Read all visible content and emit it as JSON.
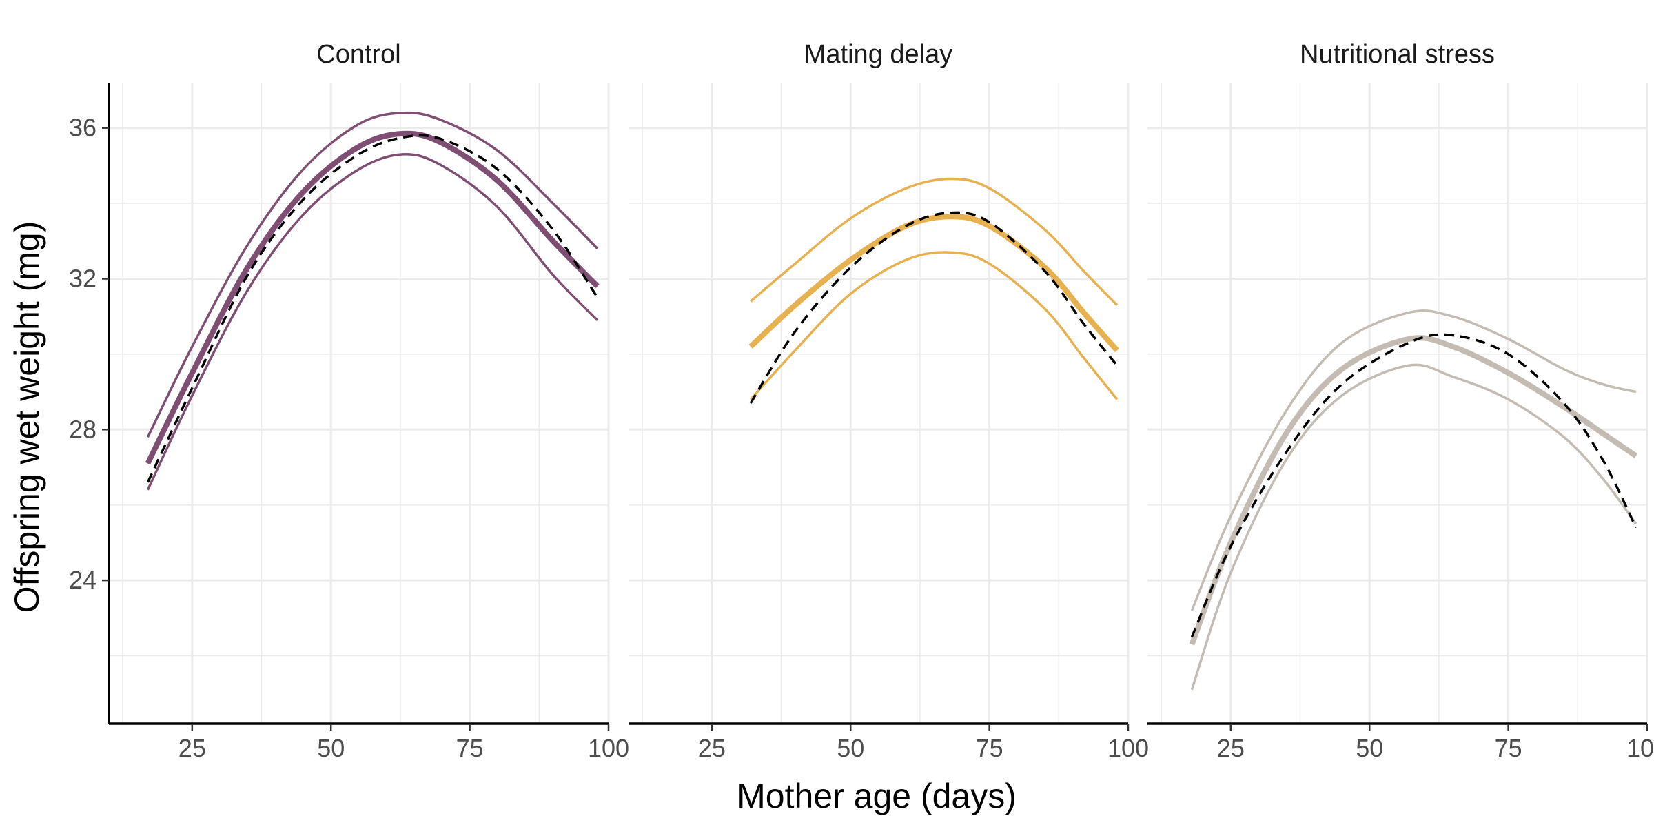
{
  "chart_data": {
    "type": "line",
    "facets": [
      "Control",
      "Mating delay",
      "Nutritional stress"
    ],
    "xlabel": "Mother age (days)",
    "ylabel": "Offspring wet weight (mg)",
    "xlim": [
      10,
      100
    ],
    "ylim": [
      20.2,
      37.2
    ],
    "xticks": [
      25,
      50,
      75,
      100
    ],
    "yticks": [
      24,
      28,
      32,
      36
    ],
    "grid": true,
    "panels": [
      {
        "name": "Control",
        "color": "#7f4f73",
        "x": [
          17,
          25,
          35,
          45,
          55,
          63,
          70,
          80,
          90,
          98
        ],
        "fit": [
          27.1,
          29.5,
          32.3,
          34.3,
          35.5,
          35.85,
          35.6,
          34.6,
          33.0,
          31.8
        ],
        "upper": [
          27.8,
          30.2,
          32.9,
          34.9,
          36.1,
          36.4,
          36.2,
          35.4,
          34.0,
          32.8
        ],
        "lower": [
          26.4,
          28.9,
          31.7,
          33.7,
          34.9,
          35.3,
          35.0,
          33.9,
          32.1,
          30.9
        ],
        "observed": [
          26.6,
          29.1,
          32.1,
          34.1,
          35.3,
          35.75,
          35.7,
          34.9,
          33.3,
          31.5
        ]
      },
      {
        "name": "Mating delay",
        "color": "#e8b150",
        "x": [
          32,
          40,
          50,
          60,
          68,
          75,
          85,
          92,
          98
        ],
        "fit": [
          30.2,
          31.3,
          32.5,
          33.4,
          33.65,
          33.4,
          32.3,
          31.1,
          30.1
        ],
        "upper": [
          31.4,
          32.4,
          33.6,
          34.4,
          34.65,
          34.4,
          33.3,
          32.2,
          31.3
        ],
        "lower": [
          28.8,
          30.1,
          31.6,
          32.5,
          32.7,
          32.4,
          31.2,
          29.9,
          28.8
        ],
        "observed": [
          28.7,
          30.6,
          32.3,
          33.4,
          33.75,
          33.5,
          32.2,
          30.8,
          29.7
        ]
      },
      {
        "name": "Nutritional stress",
        "color": "#c4bcb3",
        "x": [
          18,
          25,
          35,
          45,
          57,
          65,
          75,
          85,
          92,
          98
        ],
        "fit": [
          22.3,
          25.0,
          27.9,
          29.6,
          30.4,
          30.2,
          29.5,
          28.6,
          27.9,
          27.3
        ],
        "upper": [
          23.2,
          25.7,
          28.5,
          30.3,
          31.1,
          31.0,
          30.4,
          29.6,
          29.2,
          29.0
        ],
        "lower": [
          21.1,
          24.2,
          27.2,
          28.9,
          29.7,
          29.4,
          28.8,
          27.8,
          26.7,
          25.5
        ],
        "observed": [
          22.5,
          24.9,
          27.4,
          29.2,
          30.3,
          30.5,
          30.0,
          28.7,
          27.2,
          25.4
        ]
      }
    ]
  }
}
